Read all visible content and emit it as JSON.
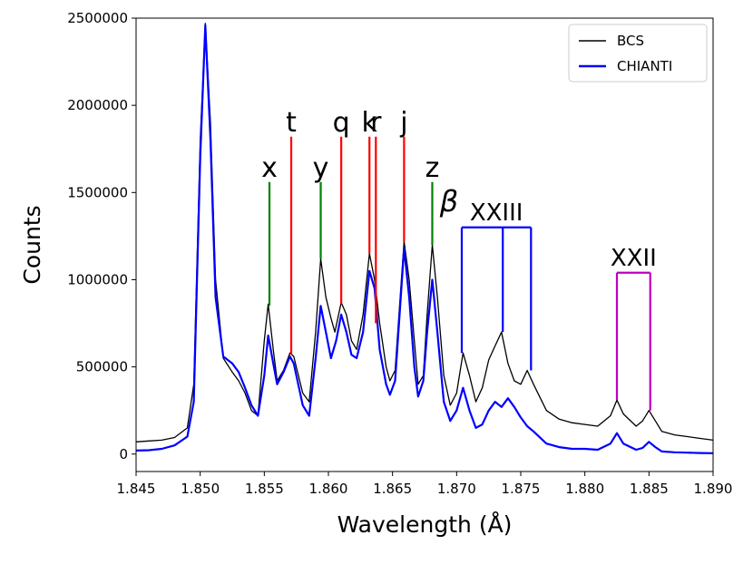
{
  "chart_data": {
    "type": "line",
    "xlabel": "Wavelength (Å)",
    "ylabel": "Counts",
    "xlim": [
      1.845,
      1.89
    ],
    "ylim": [
      -100000,
      2500000
    ],
    "xticks": [
      "1.845",
      "1.850",
      "1.855",
      "1.860",
      "1.865",
      "1.870",
      "1.875",
      "1.880",
      "1.885",
      "1.890"
    ],
    "yticks": [
      "0",
      "500000",
      "1000000",
      "1500000",
      "2000000",
      "2500000"
    ],
    "legend": {
      "position": "top-right",
      "entries": [
        "BCS",
        "CHIANTI"
      ]
    },
    "colors": {
      "bcs": "#000000",
      "chianti": "#0000ff",
      "red": "#ff0000",
      "green": "#008000",
      "blue": "#0000ff",
      "magenta": "#bf00bf"
    },
    "series": [
      {
        "name": "BCS",
        "points": [
          [
            1.845,
            70000
          ],
          [
            1.846,
            75000
          ],
          [
            1.847,
            80000
          ],
          [
            1.848,
            95000
          ],
          [
            1.849,
            150000
          ],
          [
            1.8495,
            400000
          ],
          [
            1.85,
            1800000
          ],
          [
            1.8504,
            2470000
          ],
          [
            1.8508,
            1900000
          ],
          [
            1.8512,
            1000000
          ],
          [
            1.8518,
            550000
          ],
          [
            1.8525,
            470000
          ],
          [
            1.853,
            420000
          ],
          [
            1.8535,
            350000
          ],
          [
            1.854,
            250000
          ],
          [
            1.8545,
            220000
          ],
          [
            1.855,
            650000
          ],
          [
            1.8553,
            860000
          ],
          [
            1.8557,
            600000
          ],
          [
            1.856,
            420000
          ],
          [
            1.8565,
            480000
          ],
          [
            1.857,
            580000
          ],
          [
            1.8573,
            560000
          ],
          [
            1.858,
            350000
          ],
          [
            1.8585,
            300000
          ],
          [
            1.859,
            700000
          ],
          [
            1.8594,
            1120000
          ],
          [
            1.8598,
            900000
          ],
          [
            1.8602,
            780000
          ],
          [
            1.8605,
            700000
          ],
          [
            1.861,
            870000
          ],
          [
            1.8614,
            800000
          ],
          [
            1.8618,
            650000
          ],
          [
            1.8622,
            600000
          ],
          [
            1.8627,
            800000
          ],
          [
            1.8632,
            1150000
          ],
          [
            1.8636,
            1000000
          ],
          [
            1.864,
            750000
          ],
          [
            1.8645,
            500000
          ],
          [
            1.8648,
            420000
          ],
          [
            1.8652,
            480000
          ],
          [
            1.8656,
            900000
          ],
          [
            1.8659,
            1220000
          ],
          [
            1.8663,
            1000000
          ],
          [
            1.8667,
            650000
          ],
          [
            1.867,
            400000
          ],
          [
            1.8674,
            450000
          ],
          [
            1.8677,
            800000
          ],
          [
            1.8681,
            1200000
          ],
          [
            1.8685,
            900000
          ],
          [
            1.869,
            450000
          ],
          [
            1.8695,
            280000
          ],
          [
            1.87,
            350000
          ],
          [
            1.8705,
            580000
          ],
          [
            1.871,
            450000
          ],
          [
            1.8715,
            300000
          ],
          [
            1.872,
            380000
          ],
          [
            1.8725,
            540000
          ],
          [
            1.873,
            620000
          ],
          [
            1.8735,
            700000
          ],
          [
            1.874,
            520000
          ],
          [
            1.8745,
            420000
          ],
          [
            1.875,
            400000
          ],
          [
            1.8755,
            480000
          ],
          [
            1.876,
            400000
          ],
          [
            1.877,
            250000
          ],
          [
            1.878,
            200000
          ],
          [
            1.879,
            180000
          ],
          [
            1.88,
            170000
          ],
          [
            1.881,
            160000
          ],
          [
            1.882,
            220000
          ],
          [
            1.8825,
            310000
          ],
          [
            1.883,
            230000
          ],
          [
            1.884,
            160000
          ],
          [
            1.8845,
            190000
          ],
          [
            1.885,
            250000
          ],
          [
            1.8855,
            190000
          ],
          [
            1.886,
            130000
          ],
          [
            1.887,
            110000
          ],
          [
            1.888,
            100000
          ],
          [
            1.889,
            90000
          ],
          [
            1.89,
            80000
          ]
        ]
      },
      {
        "name": "CHIANTI",
        "points": [
          [
            1.845,
            20000
          ],
          [
            1.846,
            22000
          ],
          [
            1.847,
            30000
          ],
          [
            1.848,
            50000
          ],
          [
            1.849,
            100000
          ],
          [
            1.8495,
            300000
          ],
          [
            1.85,
            1700000
          ],
          [
            1.8504,
            2460000
          ],
          [
            1.8508,
            1800000
          ],
          [
            1.8512,
            900000
          ],
          [
            1.8518,
            560000
          ],
          [
            1.8525,
            520000
          ],
          [
            1.853,
            470000
          ],
          [
            1.8535,
            380000
          ],
          [
            1.854,
            280000
          ],
          [
            1.8545,
            220000
          ],
          [
            1.855,
            450000
          ],
          [
            1.8553,
            680000
          ],
          [
            1.8557,
            520000
          ],
          [
            1.856,
            400000
          ],
          [
            1.8565,
            470000
          ],
          [
            1.857,
            560000
          ],
          [
            1.8573,
            520000
          ],
          [
            1.858,
            280000
          ],
          [
            1.8585,
            220000
          ],
          [
            1.859,
            550000
          ],
          [
            1.8594,
            850000
          ],
          [
            1.8598,
            700000
          ],
          [
            1.8602,
            550000
          ],
          [
            1.8606,
            650000
          ],
          [
            1.861,
            800000
          ],
          [
            1.8614,
            700000
          ],
          [
            1.8618,
            570000
          ],
          [
            1.8622,
            550000
          ],
          [
            1.8627,
            700000
          ],
          [
            1.8632,
            1050000
          ],
          [
            1.8636,
            950000
          ],
          [
            1.864,
            600000
          ],
          [
            1.8645,
            400000
          ],
          [
            1.8648,
            340000
          ],
          [
            1.8652,
            420000
          ],
          [
            1.8656,
            850000
          ],
          [
            1.8659,
            1180000
          ],
          [
            1.8663,
            900000
          ],
          [
            1.8667,
            500000
          ],
          [
            1.867,
            330000
          ],
          [
            1.8674,
            420000
          ],
          [
            1.8677,
            700000
          ],
          [
            1.8681,
            1000000
          ],
          [
            1.8685,
            700000
          ],
          [
            1.869,
            300000
          ],
          [
            1.8695,
            190000
          ],
          [
            1.87,
            250000
          ],
          [
            1.8705,
            380000
          ],
          [
            1.871,
            250000
          ],
          [
            1.8715,
            150000
          ],
          [
            1.872,
            170000
          ],
          [
            1.8725,
            250000
          ],
          [
            1.873,
            300000
          ],
          [
            1.8735,
            270000
          ],
          [
            1.874,
            320000
          ],
          [
            1.8745,
            270000
          ],
          [
            1.875,
            210000
          ],
          [
            1.8755,
            160000
          ],
          [
            1.876,
            130000
          ],
          [
            1.877,
            60000
          ],
          [
            1.878,
            40000
          ],
          [
            1.879,
            30000
          ],
          [
            1.88,
            30000
          ],
          [
            1.881,
            25000
          ],
          [
            1.882,
            60000
          ],
          [
            1.8825,
            120000
          ],
          [
            1.883,
            60000
          ],
          [
            1.884,
            25000
          ],
          [
            1.8845,
            35000
          ],
          [
            1.885,
            70000
          ],
          [
            1.8855,
            40000
          ],
          [
            1.886,
            15000
          ],
          [
            1.887,
            10000
          ],
          [
            1.888,
            8000
          ],
          [
            1.889,
            6000
          ],
          [
            1.89,
            5000
          ]
        ]
      }
    ],
    "line_markers": [
      {
        "label": "x",
        "x": 1.8554,
        "top": 1560000,
        "bottom": 850000,
        "color": "green"
      },
      {
        "label": "t",
        "x": 1.8571,
        "top": 1820000,
        "bottom": 570000,
        "color": "red"
      },
      {
        "label": "y",
        "x": 1.8594,
        "top": 1560000,
        "bottom": 1120000,
        "color": "green"
      },
      {
        "label": "q",
        "x": 1.861,
        "top": 1820000,
        "bottom": 860000,
        "color": "red"
      },
      {
        "label": "k",
        "x": 1.8632,
        "top": 1820000,
        "bottom": 1150000,
        "color": "red"
      },
      {
        "label": "r",
        "x": 1.8637,
        "top": 1820000,
        "bottom": 750000,
        "color": "red"
      },
      {
        "label": "j",
        "x": 1.8659,
        "top": 1820000,
        "bottom": 1220000,
        "color": "red"
      },
      {
        "label": "z",
        "x": 1.8681,
        "top": 1560000,
        "bottom": 1200000,
        "color": "green"
      }
    ],
    "bracket_groups": [
      {
        "label": "XXIII",
        "greek": "β",
        "x_left": 1.8704,
        "x_mid": 1.8736,
        "x_right": 1.8758,
        "top": 1300000,
        "bottoms": [
          580000,
          700000,
          480000
        ],
        "color": "blue"
      },
      {
        "label": "XXII",
        "x_left": 1.8825,
        "x_right": 1.8851,
        "top": 1040000,
        "bottoms": [
          310000,
          250000
        ],
        "color": "magenta"
      }
    ]
  }
}
